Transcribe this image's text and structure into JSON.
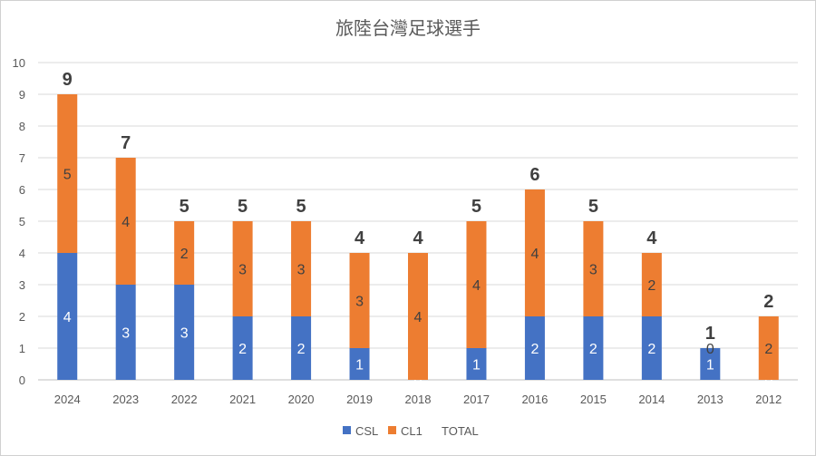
{
  "chart_data": {
    "type": "bar",
    "stacked": true,
    "title": "旅陸台灣足球選手",
    "categories": [
      "2024",
      "2023",
      "2022",
      "2021",
      "2020",
      "2019",
      "2018",
      "2017",
      "2016",
      "2015",
      "2014",
      "2013",
      "2012"
    ],
    "series": [
      {
        "name": "CSL",
        "values": [
          4,
          3,
          3,
          2,
          2,
          1,
          0,
          1,
          2,
          2,
          2,
          1,
          0
        ],
        "color": "#4472C4"
      },
      {
        "name": "CL1",
        "values": [
          5,
          4,
          2,
          3,
          3,
          3,
          4,
          4,
          4,
          3,
          2,
          0,
          2
        ],
        "color": "#ED7D31"
      }
    ],
    "totals": {
      "name": "TOTAL",
      "values": [
        9,
        7,
        5,
        5,
        5,
        4,
        4,
        5,
        6,
        5,
        4,
        1,
        2
      ]
    },
    "ylim": [
      0,
      10
    ],
    "yticks": [
      "0",
      "1",
      "2",
      "3",
      "4",
      "5",
      "6",
      "7",
      "8",
      "9",
      "10"
    ],
    "grid": true,
    "legend_position": "bottom"
  }
}
